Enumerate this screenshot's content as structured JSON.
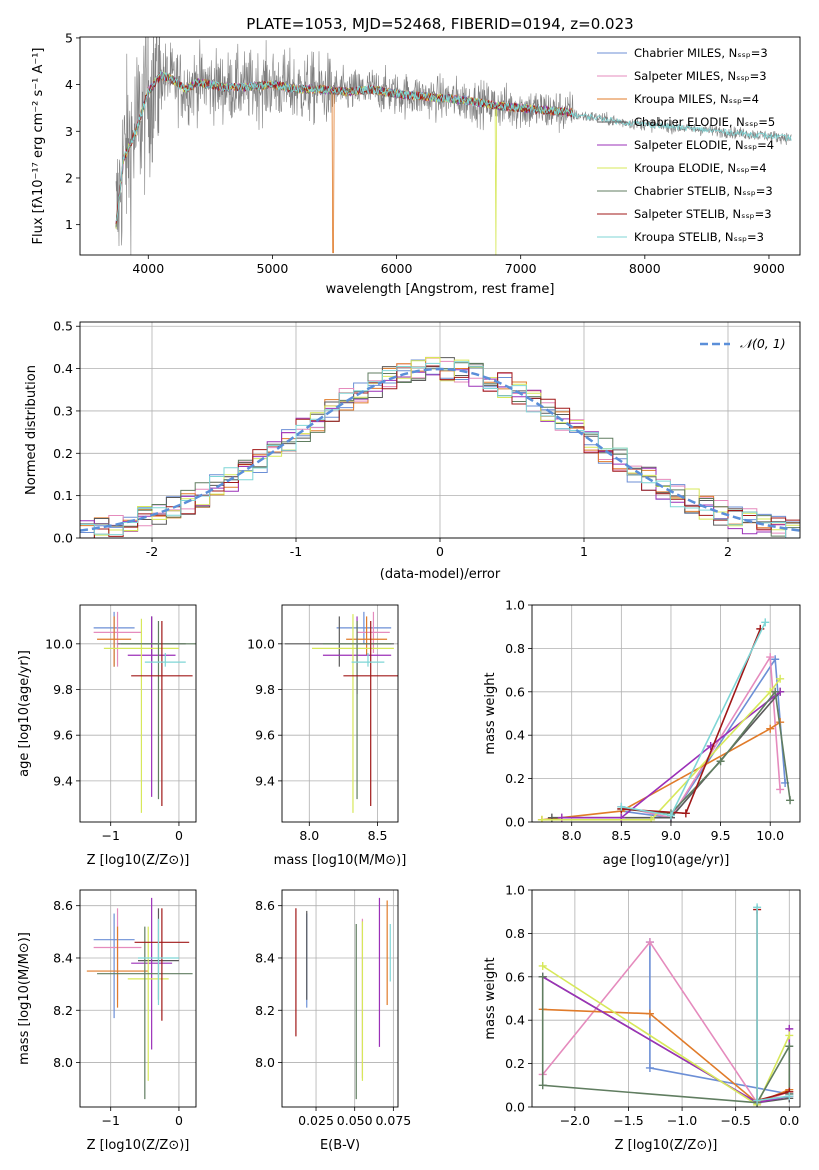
{
  "figure": {
    "title": "PLATE=1053, MJD=52468, FIBERID=0194, z=0.023"
  },
  "series_styles": [
    {
      "name": "Chabrier MILES",
      "color": "#6c8fd6"
    },
    {
      "name": "Salpeter MILES",
      "color": "#e58bbd"
    },
    {
      "name": "Kroupa MILES",
      "color": "#e07b2a"
    },
    {
      "name": "Chabrier ELODIE",
      "color": "#5a5a5a"
    },
    {
      "name": "Salpeter ELODIE",
      "color": "#9b30b8"
    },
    {
      "name": "Kroupa ELODIE",
      "color": "#d7e85a"
    },
    {
      "name": "Chabrier STELIB",
      "color": "#607d60"
    },
    {
      "name": "Salpeter STELIB",
      "color": "#a01818"
    },
    {
      "name": "Kroupa STELIB",
      "color": "#7fd6d6"
    }
  ],
  "chart_data": [
    {
      "id": "spectrum",
      "type": "line",
      "xlabel": "wavelength [Angstrom, rest frame]",
      "ylabel": "Flux [fλ10⁻¹⁷ erg cm⁻² s⁻¹ A⁻¹]",
      "xlim": [
        3450,
        9250
      ],
      "ylim": [
        0.35,
        5.02
      ],
      "xticks": [
        4000,
        5000,
        6000,
        7000,
        8000,
        9000
      ],
      "yticks": [
        1,
        2,
        3,
        4,
        5
      ],
      "legend": [
        "Chabrier MILES, N_SSP=3",
        "Salpeter MILES, N_SSP=3",
        "Kroupa MILES, N_SSP=4",
        "Chabrier ELODIE, N_SSP=5",
        "Salpeter ELODIE, N_SSP=4",
        "Kroupa ELODIE, N_SSP=4",
        "Chabrier STELIB, N_SSP=3",
        "Salpeter STELIB, N_SSP=3",
        "Kroupa STELIB, N_SSP=3"
      ],
      "legend_placement": "upper-right",
      "data_range_x": [
        3740,
        9180
      ],
      "model_continuum": [
        [
          3740,
          1.0
        ],
        [
          3800,
          2.4
        ],
        [
          3900,
          3.0
        ],
        [
          4000,
          3.85
        ],
        [
          4100,
          4.2
        ],
        [
          4200,
          4.1
        ],
        [
          4300,
          3.9
        ],
        [
          4400,
          4.05
        ],
        [
          4600,
          3.95
        ],
        [
          4800,
          3.95
        ],
        [
          5000,
          4.0
        ],
        [
          5200,
          3.9
        ],
        [
          5400,
          3.9
        ],
        [
          5600,
          3.85
        ],
        [
          5800,
          3.9
        ],
        [
          6000,
          3.8
        ],
        [
          6200,
          3.75
        ],
        [
          6400,
          3.7
        ],
        [
          6600,
          3.65
        ],
        [
          6800,
          3.55
        ],
        [
          7000,
          3.5
        ],
        [
          7200,
          3.45
        ],
        [
          7420,
          3.4
        ]
      ],
      "data_continuum": [
        [
          7420,
          3.35
        ],
        [
          7600,
          3.3
        ],
        [
          7800,
          3.2
        ],
        [
          8000,
          3.15
        ],
        [
          8200,
          3.1
        ],
        [
          8400,
          3.05
        ],
        [
          8600,
          3.0
        ],
        [
          8800,
          2.95
        ],
        [
          9000,
          2.9
        ],
        [
          9180,
          2.85
        ]
      ]
    },
    {
      "id": "residuals",
      "type": "bar",
      "xlabel": "(data-model)/error",
      "ylabel": "Normed distribution",
      "xlim": [
        -2.5,
        2.5
      ],
      "ylim": [
        0,
        0.51
      ],
      "xticks": [
        -2,
        -1,
        0,
        1,
        2
      ],
      "yticks": [
        0.0,
        0.1,
        0.2,
        0.3,
        0.4,
        0.5
      ],
      "grid": true,
      "legend": [
        "𝒩(0, 1)"
      ],
      "legend_placement": "upper-right",
      "bin_width": 0.1
    },
    {
      "id": "age-vs-Z",
      "type": "scatter",
      "xlabel": "Z [log10(Z/Z⊙)]",
      "ylabel": "age  [log10(age/yr)]",
      "xlim": [
        -1.45,
        0.25
      ],
      "ylim": [
        9.22,
        10.17
      ],
      "xticks": [
        -1,
        0
      ],
      "yticks": [
        9.4,
        9.6,
        9.8,
        10.0
      ],
      "grid": true,
      "errorbars": [
        {
          "x": -0.95,
          "xerr": 0.3,
          "y": 10.07,
          "yerr": [
            0.17,
            0.07
          ]
        },
        {
          "x": -0.9,
          "xerr": 0.35,
          "y": 10.05,
          "yerr": [
            0.15,
            0.09
          ]
        },
        {
          "x": -0.95,
          "xerr": 0.25,
          "y": 10.02,
          "yerr": [
            0.12,
            0.1
          ]
        },
        {
          "x": -0.4,
          "xerr": 0.5,
          "y": 10.0,
          "yerr": [
            0.08,
            0.12
          ]
        },
        {
          "x": -0.4,
          "xerr": 0.35,
          "y": 9.95,
          "yerr": [
            0.62,
            0.17
          ]
        },
        {
          "x": -0.55,
          "xerr": 0.55,
          "y": 9.98,
          "yerr": [
            0.72,
            0.13
          ]
        },
        {
          "x": -0.3,
          "xerr": 0.55,
          "y": 10.0,
          "yerr": [
            0.68,
            0.1
          ]
        },
        {
          "x": -0.25,
          "xerr": 0.45,
          "y": 9.86,
          "yerr": [
            0.57,
            0.24
          ]
        },
        {
          "x": -0.2,
          "xerr": 0.3,
          "y": 9.92,
          "yerr": [
            0.02,
            0.04
          ]
        }
      ]
    },
    {
      "id": "age-vs-mass",
      "type": "scatter",
      "xlabel": "mass [log10(M/M⊙)]",
      "ylabel": "",
      "xlim": [
        7.8,
        8.65
      ],
      "ylim": [
        9.22,
        10.17
      ],
      "xticks": [
        8.0,
        8.5
      ],
      "yticks": [
        9.4,
        9.6,
        9.8,
        10.0
      ],
      "grid": true,
      "errorbars": [
        {
          "x": 8.4,
          "xerr": 0.2,
          "y": 10.07,
          "yerr": [
            0.07,
            0.07
          ]
        },
        {
          "x": 8.47,
          "xerr": 0.12,
          "y": 10.05,
          "yerr": [
            0.09,
            0.09
          ]
        },
        {
          "x": 8.42,
          "xerr": 0.15,
          "y": 10.02,
          "yerr": [
            0.07,
            0.1
          ]
        },
        {
          "x": 8.22,
          "xerr": 0.4,
          "y": 10.0,
          "yerr": [
            0.1,
            0.12
          ]
        },
        {
          "x": 8.35,
          "xerr": 0.25,
          "y": 9.95,
          "yerr": [
            0.17,
            0.17
          ]
        },
        {
          "x": 8.32,
          "xerr": 0.3,
          "y": 9.98,
          "yerr": [
            0.72,
            0.15
          ]
        },
        {
          "x": 8.35,
          "xerr": 0.25,
          "y": 10.0,
          "yerr": [
            0.68,
            0.1
          ]
        },
        {
          "x": 8.45,
          "xerr": 0.2,
          "y": 9.86,
          "yerr": [
            0.57,
            0.24
          ]
        },
        {
          "x": 8.43,
          "xerr": 0.12,
          "y": 9.92,
          "yerr": [
            0.02,
            0.04
          ]
        }
      ]
    },
    {
      "id": "mass-weight-vs-age",
      "type": "line",
      "xlabel": "age  [log10(age/yr)]",
      "ylabel": "mass weight",
      "xlim": [
        7.6,
        10.3
      ],
      "ylim": [
        0,
        1
      ],
      "xticks": [
        8.0,
        8.5,
        9.0,
        9.5,
        10.0
      ],
      "yticks": [
        0.0,
        0.2,
        0.4,
        0.6,
        0.8,
        1.0
      ],
      "grid": true,
      "series": [
        {
          "name": "Chabrier MILES",
          "x": [
            8.5,
            9.0,
            10.05,
            10.15
          ],
          "y": [
            0.05,
            0.02,
            0.75,
            0.18
          ]
        },
        {
          "name": "Salpeter MILES",
          "x": [
            8.5,
            9.0,
            10.0,
            10.1
          ],
          "y": [
            0.07,
            0.02,
            0.76,
            0.15
          ]
        },
        {
          "name": "Kroupa MILES",
          "x": [
            7.7,
            8.5,
            10.0,
            10.1
          ],
          "y": [
            0.01,
            0.05,
            0.43,
            0.46
          ]
        },
        {
          "name": "Chabrier ELODIE",
          "x": [
            7.8,
            8.5,
            9.0,
            10.1
          ],
          "y": [
            0.02,
            0.02,
            0.02,
            0.6
          ]
        },
        {
          "name": "Salpeter ELODIE",
          "x": [
            7.9,
            8.5,
            9.4,
            10.1
          ],
          "y": [
            0.02,
            0.02,
            0.35,
            0.6
          ]
        },
        {
          "name": "Kroupa ELODIE",
          "x": [
            7.7,
            8.8,
            10.0,
            10.1
          ],
          "y": [
            0.01,
            0.01,
            0.6,
            0.66
          ]
        },
        {
          "name": "Chabrier STELIB",
          "x": [
            8.5,
            9.0,
            9.5,
            10.05,
            10.2
          ],
          "y": [
            0.06,
            0.04,
            0.28,
            0.6,
            0.1
          ]
        },
        {
          "name": "Salpeter STELIB",
          "x": [
            8.5,
            9.15,
            9.9
          ],
          "y": [
            0.06,
            0.04,
            0.89
          ]
        },
        {
          "name": "Kroupa STELIB",
          "x": [
            8.5,
            9.0,
            9.95
          ],
          "y": [
            0.07,
            0.03,
            0.92
          ]
        }
      ]
    },
    {
      "id": "mass-vs-Z",
      "type": "scatter",
      "xlabel": "Z [log10(Z/Z⊙)]",
      "ylabel": "mass [log10(M/M⊙)]",
      "xlim": [
        -1.45,
        0.25
      ],
      "ylim": [
        7.83,
        8.66
      ],
      "xticks": [
        -1,
        0
      ],
      "yticks": [
        8.0,
        8.2,
        8.4,
        8.6
      ],
      "grid": true,
      "errorbars": [
        {
          "x": -0.95,
          "xerr": 0.3,
          "y": 8.47,
          "yerr": [
            0.3,
            0.1
          ]
        },
        {
          "x": -0.9,
          "xerr": 0.35,
          "y": 8.44,
          "yerr": [
            0.2,
            0.15
          ]
        },
        {
          "x": -0.9,
          "xerr": 0.45,
          "y": 8.35,
          "yerr": [
            0.14,
            0.17
          ]
        },
        {
          "x": -0.3,
          "xerr": 0.3,
          "y": 8.39,
          "yerr": [
            0.15,
            0.2
          ]
        },
        {
          "x": -0.4,
          "xerr": 0.3,
          "y": 8.38,
          "yerr": [
            0.33,
            0.25
          ]
        },
        {
          "x": -0.45,
          "xerr": 0.3,
          "y": 8.32,
          "yerr": [
            0.39,
            0.2
          ]
        },
        {
          "x": -0.5,
          "xerr": 0.7,
          "y": 8.34,
          "yerr": [
            0.48,
            0.18
          ]
        },
        {
          "x": -0.25,
          "xerr": 0.4,
          "y": 8.46,
          "yerr": [
            0.3,
            0.13
          ]
        },
        {
          "x": -0.3,
          "xerr": 0.3,
          "y": 8.4,
          "yerr": [
            0.18,
            0.15
          ]
        }
      ]
    },
    {
      "id": "mass-vs-EBV",
      "type": "scatter",
      "xlabel": "E(B-V)",
      "ylabel": "",
      "xlim": [
        0.003,
        0.078
      ],
      "ylim": [
        7.83,
        8.66
      ],
      "xticks": [
        0.025,
        0.05,
        0.075
      ],
      "xticklabels": [
        "0.025",
        "0.050",
        "0.075"
      ],
      "yticks": [
        8.0,
        8.2,
        8.4,
        8.6
      ],
      "grid": true,
      "errorbars": [
        {
          "x": 0.019,
          "y": 8.39,
          "yerr": [
            0.18,
            0.18
          ]
        },
        {
          "x": 0.055,
          "y": 8.26,
          "yerr": [
            0.32,
            0.29
          ]
        },
        {
          "x": 0.071,
          "y": 8.42,
          "yerr": [
            0.2,
            0.2
          ]
        },
        {
          "x": 0.019,
          "y": 8.41,
          "yerr": [
            0.17,
            0.17
          ]
        },
        {
          "x": 0.066,
          "y": 8.35,
          "yerr": [
            0.29,
            0.28
          ]
        },
        {
          "x": 0.055,
          "y": 8.2,
          "yerr": [
            0.27,
            0.34
          ]
        },
        {
          "x": 0.051,
          "y": 8.19,
          "yerr": [
            0.33,
            0.34
          ]
        },
        {
          "x": 0.012,
          "y": 8.35,
          "yerr": [
            0.25,
            0.24
          ]
        },
        {
          "x": 0.073,
          "y": 8.42,
          "yerr": [
            0.11,
            0.11
          ]
        }
      ]
    },
    {
      "id": "mass-weight-vs-Z",
      "type": "line",
      "xlabel": "Z [log10(Z/Z⊙)]",
      "ylabel": "mass weight",
      "xlim": [
        -2.4,
        0.1
      ],
      "ylim": [
        0,
        1
      ],
      "xticks": [
        -2.0,
        -1.5,
        -1.0,
        -0.5,
        0.0
      ],
      "yticks": [
        0.0,
        0.2,
        0.4,
        0.6,
        0.8,
        1.0
      ],
      "grid": true,
      "series": [
        {
          "name": "Chabrier MILES",
          "x": [
            -1.3,
            -1.3,
            0.0
          ],
          "y": [
            0.76,
            0.18,
            0.06
          ]
        },
        {
          "name": "Salpeter MILES",
          "x": [
            -2.3,
            -1.3,
            -0.3,
            0.0
          ],
          "y": [
            0.15,
            0.76,
            0.02,
            0.07
          ]
        },
        {
          "name": "Kroupa MILES",
          "x": [
            -2.3,
            -1.3,
            -0.3,
            0.0
          ],
          "y": [
            0.45,
            0.43,
            0.02,
            0.08
          ]
        },
        {
          "name": "Chabrier ELODIE",
          "x": [
            -2.3,
            -0.3,
            0.0
          ],
          "y": [
            0.6,
            0.02,
            0.04
          ]
        },
        {
          "name": "Salpeter ELODIE",
          "x": [
            -2.3,
            -0.3,
            0.0,
            0.0
          ],
          "y": [
            0.6,
            0.02,
            0.05,
            0.36
          ]
        },
        {
          "name": "Kroupa ELODIE",
          "x": [
            -2.3,
            -0.3,
            0.0
          ],
          "y": [
            0.65,
            0.01,
            0.33
          ]
        },
        {
          "name": "Chabrier STELIB",
          "x": [
            -2.3,
            -2.3,
            -0.3,
            0.0,
            0.0
          ],
          "y": [
            0.6,
            0.1,
            0.02,
            0.28,
            0.06
          ]
        },
        {
          "name": "Salpeter STELIB",
          "x": [
            -0.3,
            -0.3,
            0.0
          ],
          "y": [
            0.91,
            0.03,
            0.07
          ]
        },
        {
          "name": "Kroupa STELIB",
          "x": [
            -0.3,
            -0.3,
            0.0
          ],
          "y": [
            0.92,
            0.03,
            0.05
          ]
        }
      ]
    }
  ]
}
